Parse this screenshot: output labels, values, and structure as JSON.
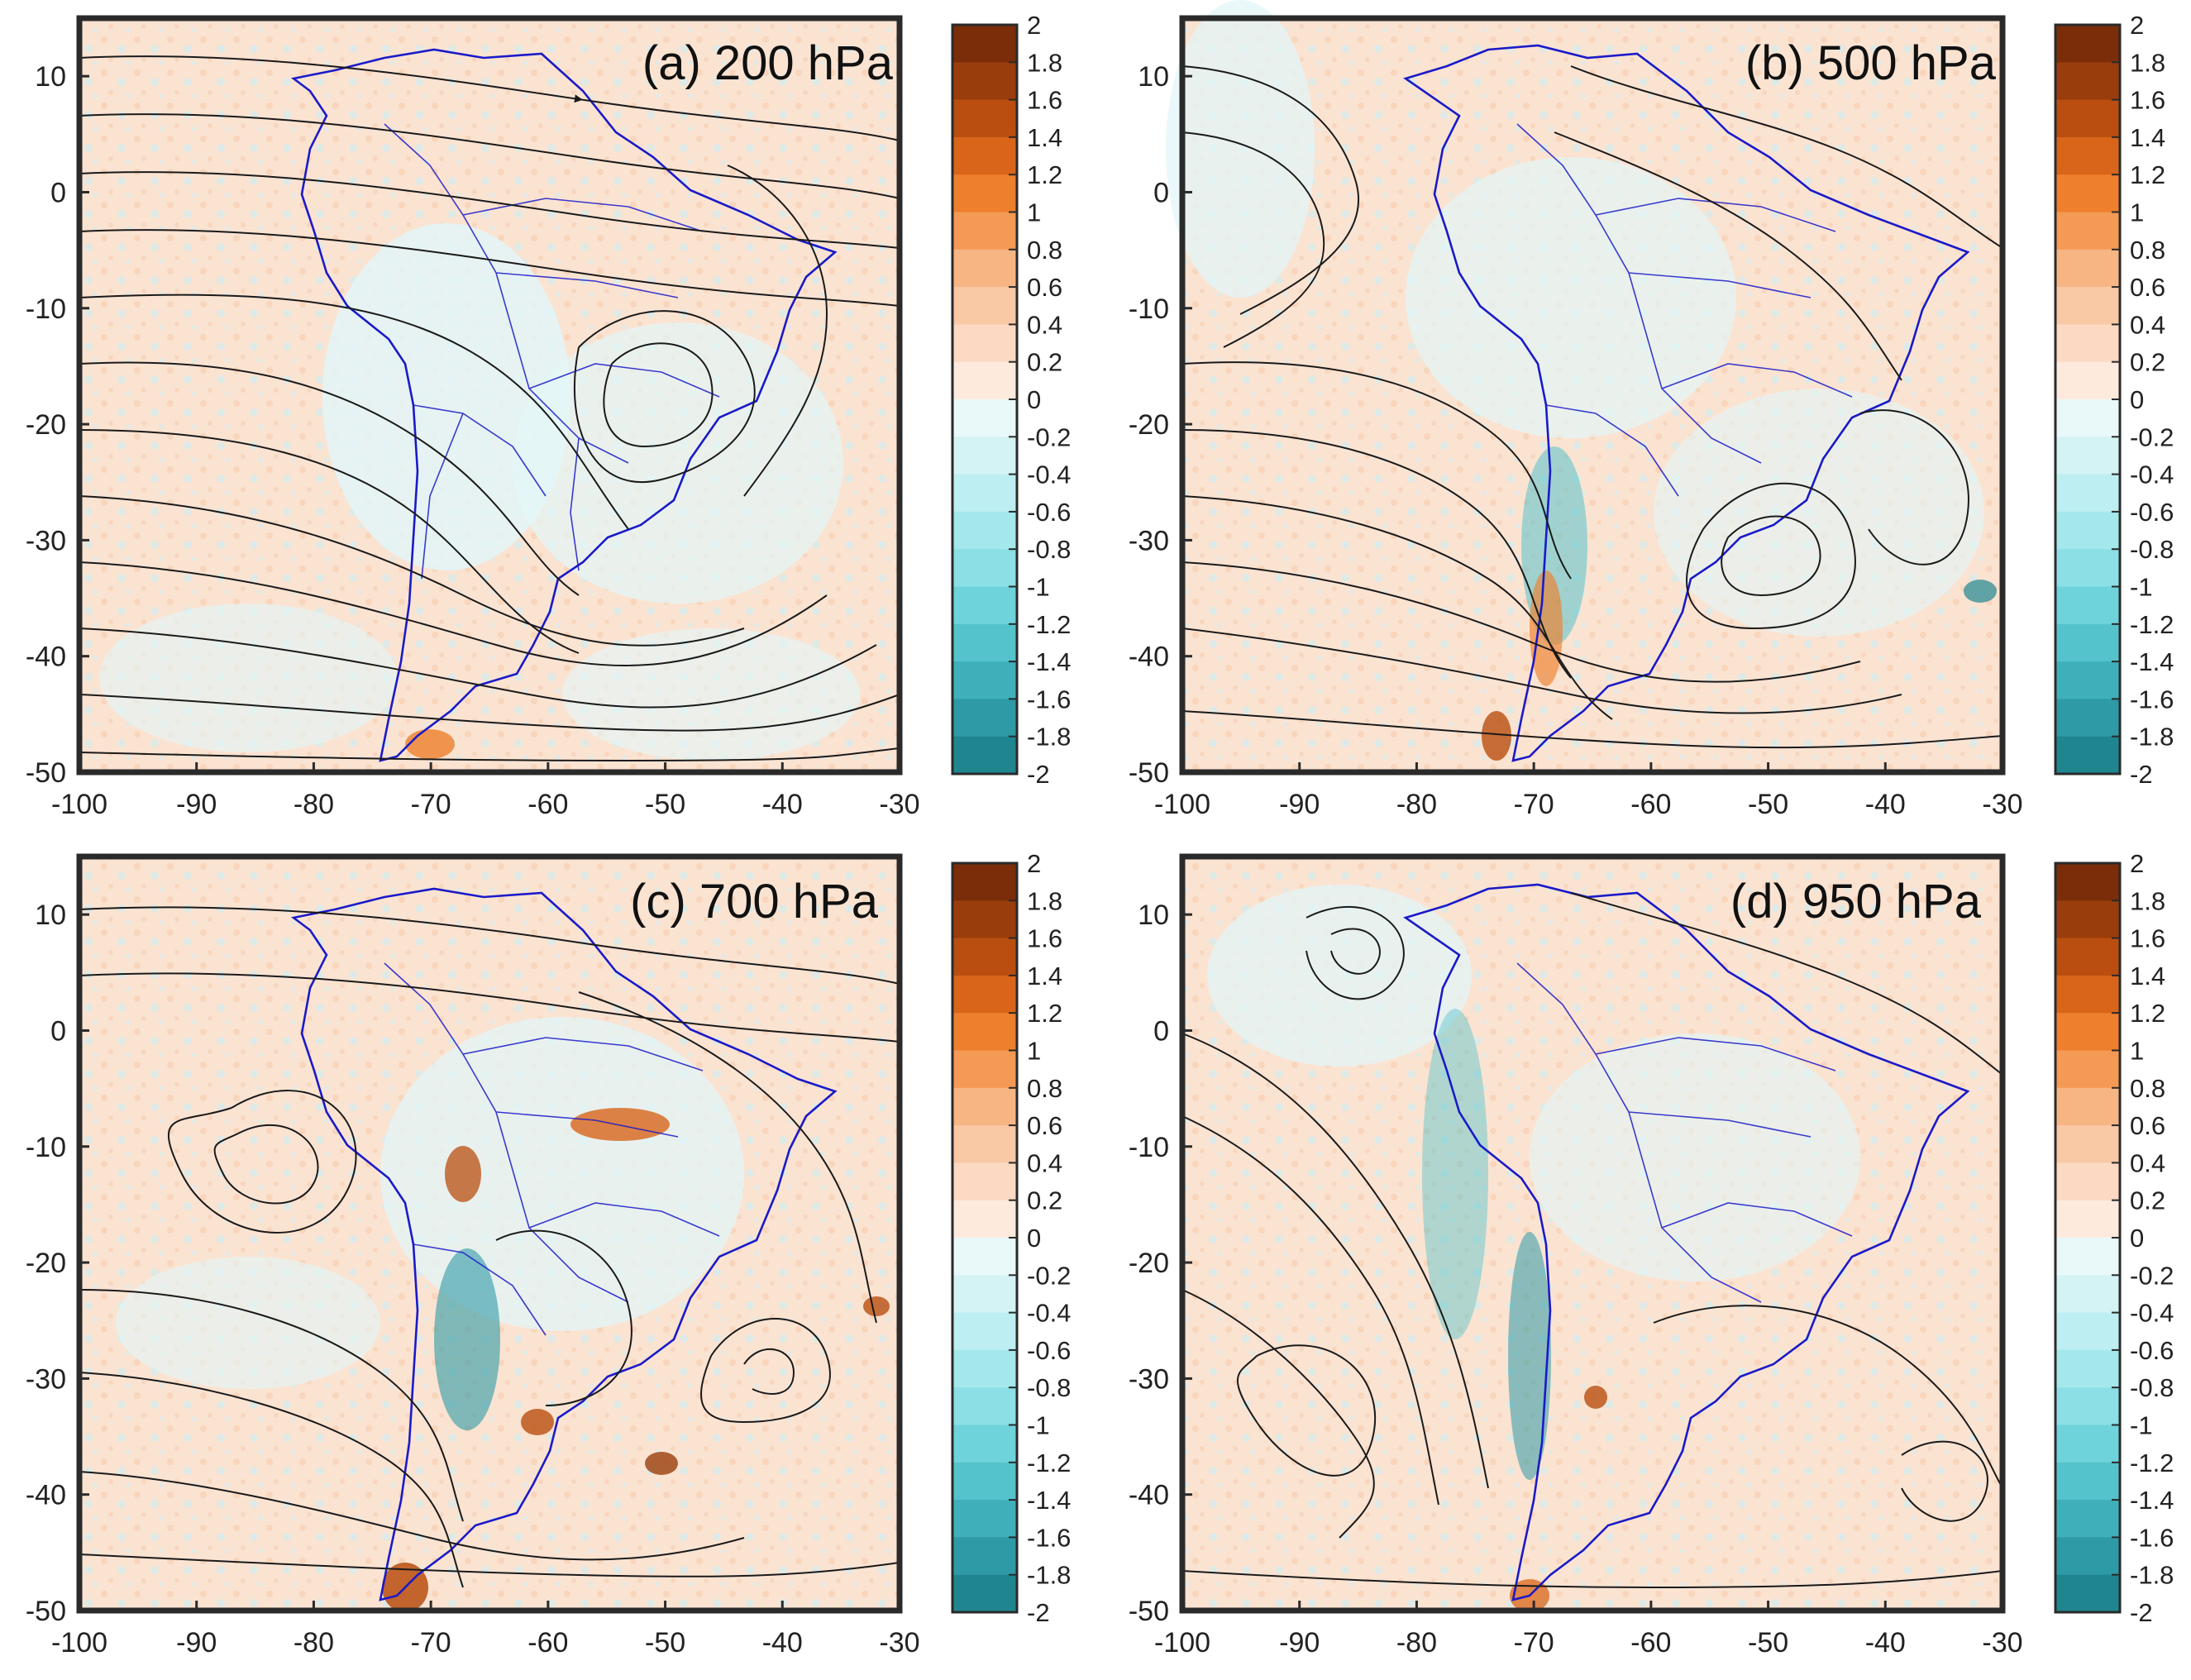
{
  "figure": {
    "x_axis": {
      "ticks": [
        "-100",
        "-90",
        "-80",
        "-70",
        "-60",
        "-50",
        "-40",
        "-30"
      ],
      "values": [
        -100,
        -90,
        -80,
        -70,
        -60,
        -50,
        -40,
        -30
      ],
      "range": [
        -100,
        -30
      ]
    },
    "y_axis": {
      "ticks": [
        "10",
        "0",
        "-10",
        "-20",
        "-30",
        "-40",
        "-50"
      ],
      "values": [
        10,
        0,
        -10,
        -20,
        -30,
        -40,
        -50
      ],
      "range": [
        -50,
        15
      ]
    },
    "colorbar": {
      "labels": [
        "2",
        "1.8",
        "1.6",
        "1.4",
        "1.2",
        "1",
        "0.8",
        "0.6",
        "0.4",
        "0.2",
        "0",
        "-0.2",
        "-0.4",
        "-0.6",
        "-0.8",
        "-1",
        "-1.2",
        "-1.4",
        "-1.6",
        "-1.8",
        "-2"
      ],
      "range": [
        -2,
        2
      ],
      "colors": [
        "#7a2d08",
        "#9a3d0c",
        "#b94e10",
        "#d8651a",
        "#ee7f2c",
        "#f49a55",
        "#f7b584",
        "#f9c8a5",
        "#fbd9c2",
        "#fdeadd",
        "#e9f8f9",
        "#d3f3f5",
        "#bdeef1",
        "#a4e8ec",
        "#8bdfe5",
        "#6fd3db",
        "#55c3cc",
        "#3fb0ba",
        "#2e9aa5",
        "#1f8690"
      ]
    },
    "panels": [
      {
        "title": "(a) 200 hPa"
      },
      {
        "title": "(b) 500 hPa"
      },
      {
        "title": "(c) 700 hPa"
      },
      {
        "title": "(d) 950 hPa"
      }
    ]
  },
  "colors": {
    "land_border": "#1a1ac8",
    "streamline": "#1a1a1a",
    "frame": "#2a2a2a",
    "background_positive": "#fbe3d2",
    "background_negative": "#e3f6f8"
  }
}
